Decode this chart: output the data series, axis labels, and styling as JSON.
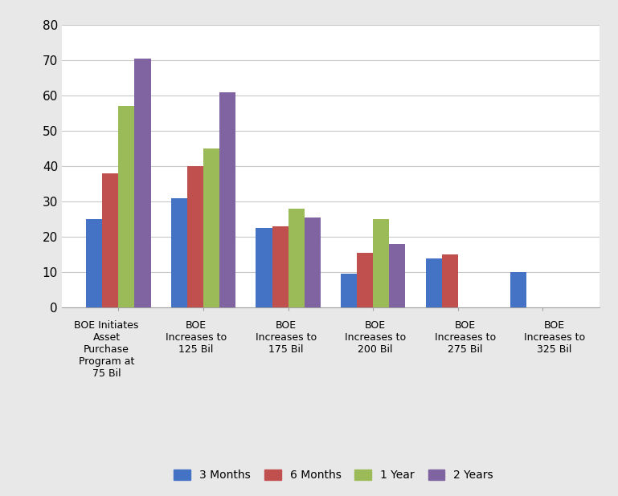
{
  "categories": [
    "BOE Initiates\nAsset\nPurchase\nProgram at\n75 Bil",
    "BOE\nIncreases to\n125 Bil",
    "BOE\nIncreases to\n175 Bil",
    "BOE\nIncreases to\n200 Bil",
    "BOE\nIncreases to\n275 Bil",
    "BOE\nIncreases to\n325 Bil"
  ],
  "series": {
    "3 Months": [
      25,
      31,
      22.5,
      9.5,
      14,
      10
    ],
    "6 Months": [
      38,
      40,
      23,
      15.5,
      15,
      0
    ],
    "1 Year": [
      57,
      45,
      28,
      25,
      0,
      0
    ],
    "2 Years": [
      70.5,
      61,
      25.5,
      18,
      0,
      0
    ]
  },
  "colors": {
    "3 Months": "#4472C4",
    "6 Months": "#C0504D",
    "1 Year": "#9BBB59",
    "2 Years": "#8064A2"
  },
  "ylim": [
    0,
    80
  ],
  "yticks": [
    0,
    10,
    20,
    30,
    40,
    50,
    60,
    70,
    80
  ],
  "background_color": "#FFFFFF",
  "outer_background": "#E8E8E8",
  "grid_color": "#C8C8C8",
  "legend_labels": [
    "3 Months",
    "6 Months",
    "1 Year",
    "2 Years"
  ],
  "bar_width": 0.19
}
